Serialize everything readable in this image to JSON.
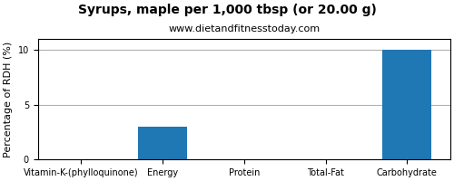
{
  "chart_data": {
    "type": "bar",
    "title": "Syrups, maple per 1,000 tbsp (or 20.00 g)",
    "subtitle": "www.dietandfitnesstoday.com",
    "categories": [
      "Vitamin-K-(phylloquinone)",
      "Energy",
      "Protein",
      "Total-Fat",
      "Carbohydrate"
    ],
    "values": [
      0,
      3.0,
      0,
      0,
      10.0
    ],
    "ylabel": "Percentage of RDH (%)",
    "ylim": [
      0,
      11
    ],
    "yticks": [
      0,
      5,
      10
    ],
    "grid": true
  }
}
